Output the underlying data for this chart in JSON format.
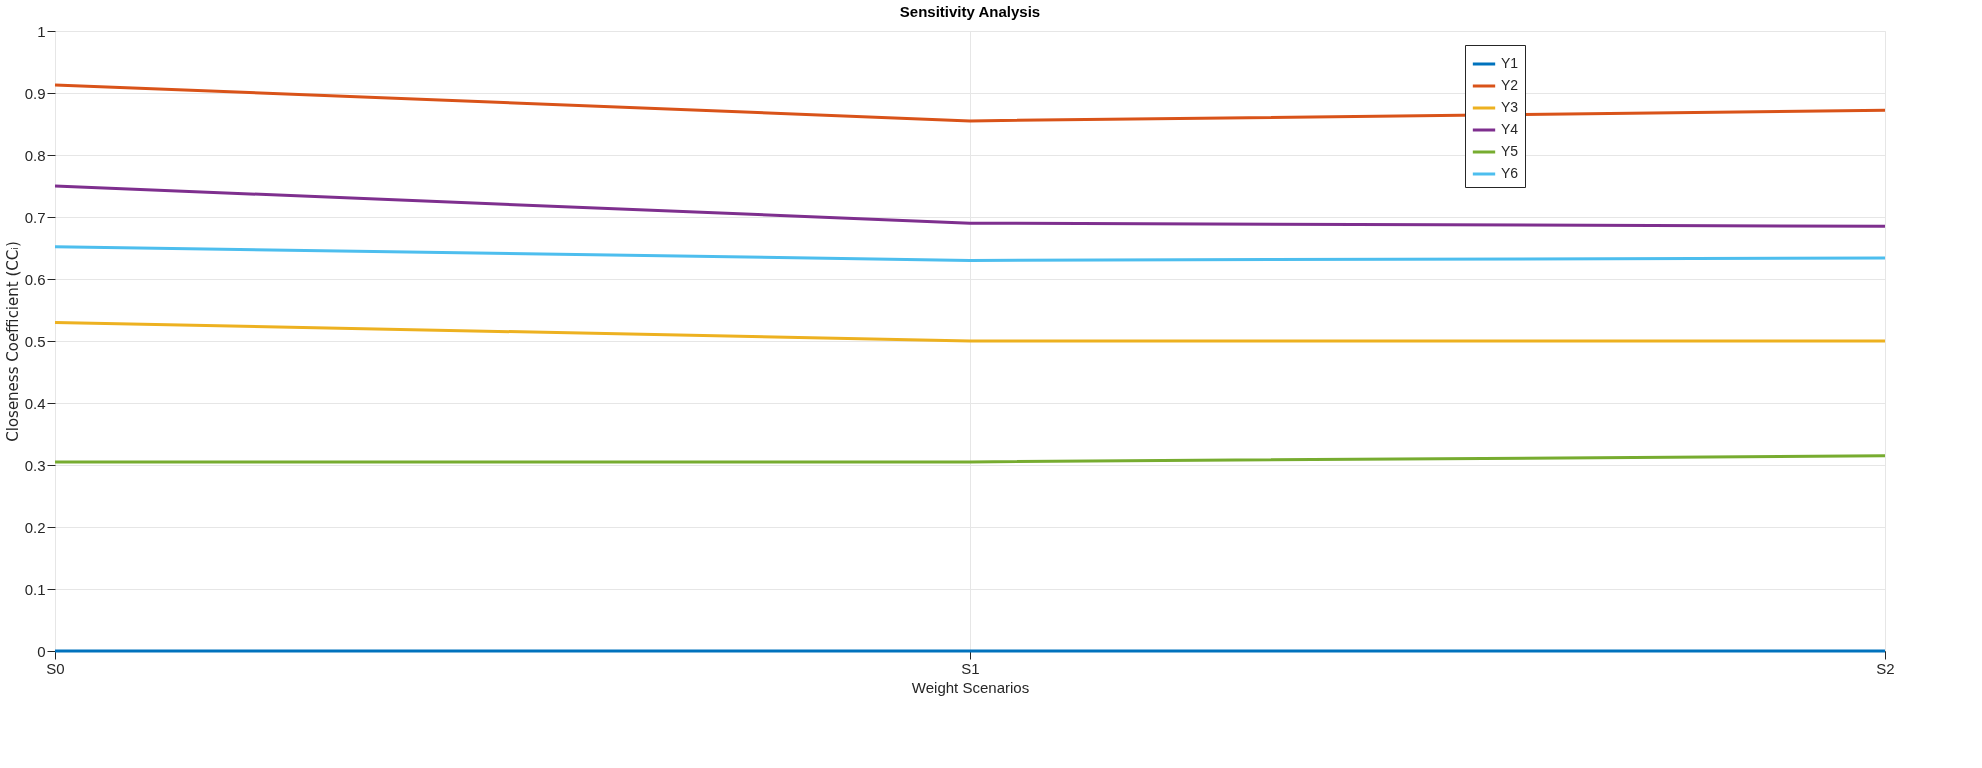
{
  "chart_data": {
    "type": "line",
    "title": "Sensitivity Analysis",
    "xlabel": "Weight Scenarios",
    "ylabel": "Closeness Coefficient (CCᵢ)",
    "categories": [
      "S0",
      "S1",
      "S2"
    ],
    "series": [
      {
        "name": "Y1",
        "color": "#0072bd",
        "values": [
          0,
          0,
          0
        ]
      },
      {
        "name": "Y2",
        "color": "#d95319",
        "values": [
          0.913,
          0.855,
          0.872
        ]
      },
      {
        "name": "Y3",
        "color": "#edb120",
        "values": [
          0.53,
          0.5,
          0.5
        ]
      },
      {
        "name": "Y4",
        "color": "#7e2f8e",
        "values": [
          0.75,
          0.69,
          0.685
        ]
      },
      {
        "name": "Y5",
        "color": "#77ac30",
        "values": [
          0.305,
          0.305,
          0.315
        ]
      },
      {
        "name": "Y6",
        "color": "#4dbeee",
        "values": [
          0.652,
          0.63,
          0.634
        ]
      }
    ],
    "ylim": [
      0,
      1
    ],
    "yticks": [
      0,
      0.1,
      0.2,
      0.3,
      0.4,
      0.5,
      0.6,
      0.7,
      0.8,
      0.9,
      1
    ],
    "grid": true,
    "legend": "top right",
    "marker": "none",
    "line_style": "solid"
  }
}
